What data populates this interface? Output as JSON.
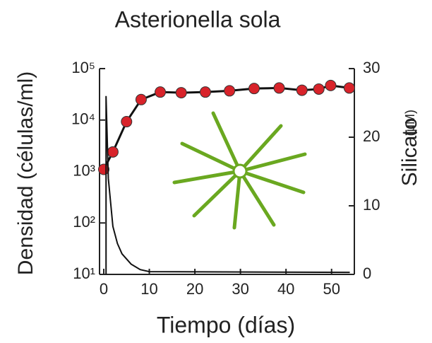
{
  "chart_data": {
    "type": "line",
    "title": "Asterionella sola",
    "xlabel": "Tiempo (días)",
    "ylabel": "Densidad (células/ml)",
    "y2label": "Silicato",
    "y2unit": "(μM)",
    "xlim": [
      0,
      55
    ],
    "xticks": [
      0,
      10,
      20,
      30,
      40,
      50
    ],
    "ylim": [
      10,
      100000
    ],
    "ylog": true,
    "yticks": [
      {
        "value": 10,
        "label": "10¹"
      },
      {
        "value": 100,
        "label": "10²"
      },
      {
        "value": 1000,
        "label": "10³"
      },
      {
        "value": 10000,
        "label": "10⁴"
      },
      {
        "value": 100000,
        "label": "10⁵"
      }
    ],
    "y2lim": [
      0,
      30
    ],
    "y2ticks": [
      0,
      10,
      20,
      30
    ],
    "series": [
      {
        "color": "#d8232a",
        "markers": true,
        "axis": "y",
        "x": [
          0,
          2,
          5,
          8.2,
          12.4,
          17,
          22.3,
          27.6,
          33,
          38.5,
          43.5,
          47.2,
          49.8,
          53.9
        ],
        "values": [
          1100,
          2400,
          9300,
          25000,
          35000,
          34000,
          35000,
          37000,
          41000,
          42000,
          38000,
          40000,
          47000,
          42000
        ]
      },
      {
        "color": "#222222",
        "markers": false,
        "axis": "y2",
        "x": [
          0.5,
          0.5,
          1,
          2,
          3,
          4,
          6,
          8,
          10,
          54
        ],
        "values": [
          0,
          26,
          14,
          7,
          4.5,
          3,
          1.5,
          0.7,
          0.4,
          0.3
        ]
      }
    ]
  }
}
